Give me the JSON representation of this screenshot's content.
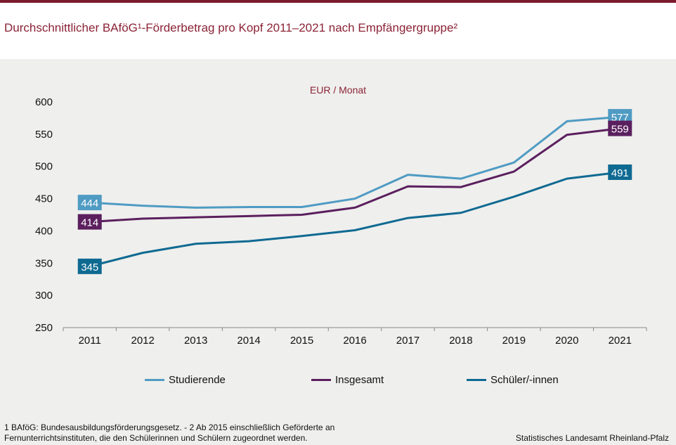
{
  "title": "Durchschnittlicher BAföG¹-Förderbetrag pro Kopf 2011–2021 nach Empfängergruppe²",
  "unit_label": "EUR / Monat",
  "footnote": "1 BAföG: Bundesausbildungsförderungsgesetz.  - 2 Ab 2015 einschließlich Geförderte an Fernunterrichtsinstituten, die den Schülerinnen und Schülern zugeordnet werden.",
  "source": "Statistisches Landesamt Rheinland-Pfalz",
  "colors": {
    "title": "#8b2335",
    "studierende": "#4f9bc3",
    "insgesamt": "#5b1f5e",
    "schueler": "#0f6a92"
  },
  "chart_data": {
    "type": "line",
    "x": [
      "2011",
      "2012",
      "2013",
      "2014",
      "2015",
      "2016",
      "2017",
      "2018",
      "2019",
      "2020",
      "2021"
    ],
    "ylim": [
      250,
      600
    ],
    "yticks": [
      "250",
      "300",
      "350",
      "400",
      "450",
      "500",
      "550",
      "600"
    ],
    "ylabel": "EUR / Monat",
    "grid": false,
    "legend_position": "bottom",
    "series": [
      {
        "name": "Studierende",
        "color": "#4f9bc3",
        "values": [
          444,
          439,
          436,
          437,
          437,
          450,
          487,
          481,
          506,
          570,
          577
        ],
        "end_labels": [
          "444",
          "577"
        ]
      },
      {
        "name": "Insgesamt",
        "color": "#5b1f5e",
        "values": [
          414,
          419,
          421,
          423,
          425,
          436,
          469,
          468,
          492,
          549,
          559
        ],
        "end_labels": [
          "414",
          "559"
        ]
      },
      {
        "name": "Schüler/-innen",
        "color": "#0f6a92",
        "values": [
          345,
          366,
          380,
          384,
          392,
          401,
          420,
          428,
          453,
          481,
          491
        ],
        "end_labels": [
          "345",
          "491"
        ]
      }
    ]
  }
}
